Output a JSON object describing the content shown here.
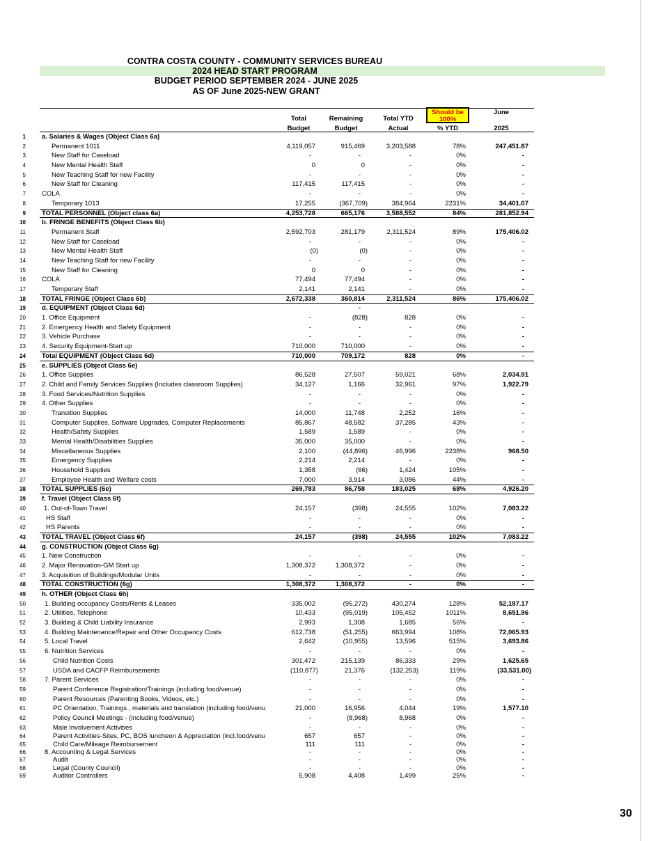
{
  "title": {
    "line1": "CONTRA COSTA COUNTY - COMMUNITY SERVICES BUREAU",
    "line2": "2024 HEAD START PROGRAM",
    "line3": "BUDGET PERIOD SEPTEMBER 2024 - JUNE 2025",
    "line4": "AS OF June 2025-NEW GRANT"
  },
  "colors": {
    "highlight_band": "#d9f0d3",
    "should_be_bg": "#ffff00",
    "should_be_text": "#e00000"
  },
  "headers": {
    "budget": [
      "Total",
      "Budget"
    ],
    "remaining": [
      "Remaining",
      "Budget"
    ],
    "ytd": [
      "Total YTD",
      "Actual"
    ],
    "should_be": "Should be 100%",
    "pct": "% YTD",
    "june": [
      "June",
      "2025"
    ]
  },
  "rows": [
    [
      "1",
      "a.  Salaries & Wages (Object Class 6a)",
      0,
      "",
      "",
      "",
      "",
      "",
      "h"
    ],
    [
      "2",
      "Permanent 1011",
      1,
      "4,119,057",
      "915,469",
      "3,203,588",
      "78%",
      "247,451.87",
      ""
    ],
    [
      "3",
      "New Staff for Caseload",
      1,
      "-",
      "-",
      "-",
      "0%",
      "-",
      ""
    ],
    [
      "4",
      "New Mental Health Staff",
      1,
      "0",
      "0",
      "-",
      "0%",
      "-",
      ""
    ],
    [
      "5",
      "New Teaching Staff for new Facility",
      1,
      "-",
      "-",
      "-",
      "0%",
      "-",
      ""
    ],
    [
      "6",
      "New Staff for Cleaning",
      1,
      "117,415",
      "117,415",
      "-",
      "0%",
      "-",
      ""
    ],
    [
      "7",
      "COLA",
      0,
      "-",
      "-",
      "-",
      "0%",
      "-",
      ""
    ],
    [
      "8",
      "Temporary 1013",
      1,
      "17,255",
      "(367,709)",
      "384,964",
      "2231%",
      "34,401.07",
      ""
    ],
    [
      "9",
      "TOTAL PERSONNEL  (Object class 6a)",
      0,
      "4,253,728",
      "665,176",
      "3,588,552",
      "84%",
      "281,852.94",
      "t"
    ],
    [
      "10",
      "b.  FRINGE BENEFITS  (Object Class 6b)",
      0,
      "",
      "",
      "",
      "",
      "",
      "h"
    ],
    [
      "11",
      "Permanent Staff",
      1,
      "2,592,703",
      "281,179",
      "2,311,524",
      "89%",
      "175,406.02",
      ""
    ],
    [
      "12",
      "New Staff for Caseload",
      1,
      "-",
      "-",
      "-",
      "0%",
      "-",
      ""
    ],
    [
      "13",
      "New Mental Health Staff",
      1,
      "(0)",
      "(0)",
      "-",
      "0%",
      "-",
      ""
    ],
    [
      "14",
      "New Teaching Staff for new Facility",
      1,
      "-",
      "-",
      "-",
      "0%",
      "-",
      ""
    ],
    [
      "15",
      "New Staff for Cleaning",
      1,
      "0",
      "0",
      "-",
      "0%",
      "-",
      ""
    ],
    [
      "16",
      "COLA",
      0,
      "77,494",
      "77,494",
      "-",
      "0%",
      "-",
      ""
    ],
    [
      "17",
      "Temporary Staff",
      1,
      "2,141",
      "2,141",
      "-",
      "0%",
      "-",
      ""
    ],
    [
      "18",
      "TOTAL FRINGE  (Object Class 6b)",
      0,
      "2,672,338",
      "360,814",
      "2,311,524",
      "86%",
      "175,406.02",
      "t"
    ],
    [
      "19",
      "d.  EQUIPMENT  (Object Class 6d)",
      0,
      "",
      "-",
      "",
      "",
      "",
      "h"
    ],
    [
      "20",
      "1. Office Equipment",
      0,
      "-",
      "(828)",
      "828",
      "0%",
      "-",
      ""
    ],
    [
      "21",
      "2. Emergency Health and Safety Equipment",
      0,
      "-",
      "-",
      "-",
      "0%",
      "-",
      ""
    ],
    [
      "22",
      "3. Vehicle Purchase",
      0,
      "-",
      "-",
      "-",
      "0%",
      "-",
      ""
    ],
    [
      "23",
      "4. Security Equipment-Start up",
      0,
      "710,000",
      "710,000",
      "-",
      "0%",
      "-",
      ""
    ],
    [
      "24",
      "Total EQUIPMENT (Object Class 6d)",
      0,
      "710,000",
      "709,172",
      "828",
      "0%",
      "-",
      "t"
    ],
    [
      "25",
      "e.  SUPPLIES (Object Class 6e)",
      0,
      "",
      "",
      "",
      "",
      "",
      "h"
    ],
    [
      "26",
      "1. Office Supplies",
      0,
      "86,528",
      "27,507",
      "59,021",
      "68%",
      "2,034.91",
      ""
    ],
    [
      "27",
      "2. Child and Family Services Supplies (Includes classroom Supplies)",
      0,
      "34,127",
      "1,166",
      "32,961",
      "97%",
      "1,922.79",
      ""
    ],
    [
      "28",
      "3. Food Services/Nutrition Supplies",
      0,
      "-",
      "-",
      "-",
      "0%",
      "-",
      ""
    ],
    [
      "29",
      "4. Other Supplies",
      0,
      "-",
      "-",
      "-",
      "0%",
      "-",
      ""
    ],
    [
      "30",
      "Transition Supplies",
      1,
      "14,000",
      "11,748",
      "2,252",
      "16%",
      "-",
      ""
    ],
    [
      "31",
      "Computer Supplies, Software Upgrades, Computer Replacements",
      1,
      "85,867",
      "48,582",
      "37,285",
      "43%",
      "-",
      ""
    ],
    [
      "32",
      "Health/Safety Supplies",
      1,
      "1,589",
      "1,589",
      "-",
      "0%",
      "-",
      ""
    ],
    [
      "33",
      "Mental Health/Disabilities Supplies",
      1,
      "35,000",
      "35,000",
      "-",
      "0%",
      "-",
      ""
    ],
    [
      "34",
      "Miscellaneous Supplies",
      1,
      "2,100",
      "(44,896)",
      "46,996",
      "2238%",
      "968.50",
      ""
    ],
    [
      "35",
      "Emergency Supplies",
      1,
      "2,214",
      "2,214",
      "-",
      "0%",
      "-",
      ""
    ],
    [
      "36",
      "Household Supplies",
      1,
      "1,358",
      "(66)",
      "1,424",
      "105%",
      "-",
      ""
    ],
    [
      "37",
      "Employee Health and Welfare costs",
      1,
      "7,000",
      "3,914",
      "3,086",
      "44%",
      "-",
      ""
    ],
    [
      "38",
      "TOTAL SUPPLIES (6e)",
      0,
      "269,783",
      "86,758",
      "183,025",
      "68%",
      "4,926.20",
      "t"
    ],
    [
      "39",
      "f. Travel (Object Class 6f)",
      0,
      "",
      "",
      "",
      "",
      "",
      "h"
    ],
    [
      "40",
      "1. Out-of-Town Travel",
      2,
      "24,157",
      "(398)",
      "24,555",
      "102%",
      "7,083.22",
      ""
    ],
    [
      "41",
      "HS Staff",
      3,
      "-",
      "-",
      "-",
      "0%",
      "-",
      ""
    ],
    [
      "42",
      "HS Parents",
      3,
      "-",
      "-",
      "-",
      "0%",
      "-",
      ""
    ],
    [
      "43",
      "TOTAL TRAVEL  (Object Class 6f)",
      0,
      "24,157",
      "(398)",
      "24,555",
      "102%",
      "7,083.22",
      "t"
    ],
    [
      "44",
      "g.  CONSTRUCTION  (Object Class 6g)",
      0,
      "",
      "",
      "",
      "",
      "",
      "h"
    ],
    [
      "45",
      "1. New Construction",
      0,
      "-",
      "-",
      "-",
      "0%",
      "-",
      ""
    ],
    [
      "46",
      "2. Major Renovation-GM Start up",
      0,
      "1,308,372",
      "1,308,372",
      "-",
      "0%",
      "-",
      ""
    ],
    [
      "47",
      "3. Acquisition of Buildings/Modular Units",
      0,
      "-",
      "-",
      "-",
      "0%",
      "-",
      ""
    ],
    [
      "48",
      "TOTAL CONSTRUCTION (6g)",
      0,
      "1,308,372",
      "1,308,372",
      "-",
      "0%",
      "-",
      "t"
    ],
    [
      "49",
      "h.  OTHER (Object Class 6h)",
      0,
      "",
      "",
      "",
      "",
      "",
      "h"
    ],
    [
      "50",
      "1. Building occupancy Costs/Rents & Leases",
      4,
      "335,002",
      "(95,272)",
      "430,274",
      "128%",
      "52,187.17",
      ""
    ],
    [
      "51",
      "2. Utilities, Telephone",
      4,
      "10,433",
      "(95,019)",
      "105,452",
      "1011%",
      "8,651.96",
      ""
    ],
    [
      "52",
      "3. Building & Child Liability Insurance",
      4,
      "2,993",
      "1,308",
      "1,685",
      "56%",
      "-",
      ""
    ],
    [
      "53",
      "4. Building Maintenance/Repair and Other Occupancy Costs",
      4,
      "612,738",
      "(51,255)",
      "663,994",
      "108%",
      "72,065.93",
      ""
    ],
    [
      "54",
      "5. Local Travel",
      4,
      "2,642",
      "(10,955)",
      "13,596",
      "515%",
      "3,693.86",
      ""
    ],
    [
      "55",
      "6. Nutrition Services",
      4,
      "-",
      "-",
      "-",
      "0%",
      "-",
      ""
    ],
    [
      "56",
      "Child Nutrition  Costs",
      5,
      "301,472",
      "215,139",
      "86,333",
      "29%",
      "1,625.65",
      ""
    ],
    [
      "57",
      "USDA and CACFP Reimbursements",
      5,
      "(110,877)",
      "21,376",
      "(132,253)",
      "119%",
      "(33,531.00)",
      ""
    ],
    [
      "58",
      "7. Parent Services",
      4,
      "-",
      "-",
      "-",
      "0%",
      "-",
      ""
    ],
    [
      "59",
      "Parent Conference Registration/Trainings (including food/venue)",
      5,
      "-",
      "-",
      "-",
      "0%",
      "-",
      ""
    ],
    [
      "60",
      "Parent Resources (Parenting Books, Videos, etc.)",
      5,
      "-",
      "-",
      "-",
      "0%",
      "-",
      ""
    ],
    [
      "61",
      "PC Orientation, Trainings , materials and translation (including food/venu",
      5,
      "21,000",
      "16,956",
      "4,044",
      "19%",
      "1,577.10",
      ""
    ],
    [
      "62",
      "Policy Council Meetings - (including food/venue)",
      5,
      "-",
      "(8,968)",
      "8,968",
      "0%",
      "-",
      ""
    ],
    [
      "63",
      "Male Involvement Activities",
      5,
      "-",
      "-",
      "-",
      "0%",
      "-",
      ""
    ],
    [
      "64",
      "Parent Activities-Sites, PC, BOS luncheon & Appreciation (incl.food/venu",
      5,
      "657",
      "657",
      "-",
      "0%",
      "-",
      "s"
    ],
    [
      "65",
      "Child Care/Mileage Reimbursement",
      5,
      "111",
      "111",
      "-",
      "0%",
      "-",
      "s"
    ],
    [
      "66",
      "8. Accounting & Legal Services",
      4,
      "-",
      "-",
      "-",
      "0%",
      "-",
      "s"
    ],
    [
      "67",
      "Audit",
      5,
      "-",
      "-",
      "-",
      "0%",
      "-",
      "s"
    ],
    [
      "68",
      "Legal (County Council)",
      5,
      "-",
      "-",
      "-",
      "0%",
      "-",
      "s"
    ],
    [
      "69",
      "Auditor Controllers",
      5,
      "5,908",
      "4,408",
      "1,499",
      "25%",
      "-",
      "s"
    ]
  ],
  "page_number": "30"
}
